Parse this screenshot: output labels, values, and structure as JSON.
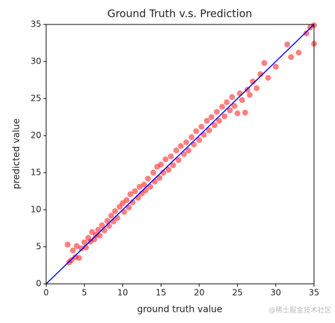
{
  "chart_data": {
    "type": "scatter",
    "title": "Ground Truth v.s. Prediction",
    "x_label": "ground truth value",
    "y_label": "predicted value",
    "x": [
      2.8,
      3.0,
      3.3,
      3.5,
      3.8,
      4.0,
      4.3,
      4.6,
      5.0,
      5.2,
      5.5,
      5.8,
      6.0,
      6.3,
      6.5,
      6.8,
      7.0,
      7.3,
      7.6,
      8.0,
      8.2,
      8.5,
      8.8,
      9.0,
      9.3,
      9.6,
      10.0,
      10.2,
      10.5,
      10.8,
      11.0,
      11.3,
      11.6,
      12.0,
      12.2,
      12.5,
      12.8,
      13.0,
      13.3,
      13.6,
      14.0,
      14.2,
      14.5,
      14.8,
      15.0,
      15.3,
      15.6,
      16.0,
      16.3,
      16.6,
      17.0,
      17.3,
      17.6,
      18.0,
      18.3,
      18.6,
      19.0,
      19.3,
      19.6,
      20.0,
      20.3,
      20.6,
      21.0,
      21.3,
      21.6,
      22.0,
      22.3,
      22.6,
      23.0,
      23.3,
      23.6,
      24.0,
      24.3,
      24.6,
      25.0,
      25.3,
      25.6,
      26.0,
      26.3,
      26.6,
      27.0,
      27.5,
      28.0,
      28.5,
      29.0,
      30.0,
      31.5,
      32.0,
      33.0,
      34.0,
      34.5,
      35.0,
      35.0
    ],
    "values": [
      5.3,
      2.9,
      3.2,
      4.5,
      3.6,
      5.1,
      3.5,
      4.8,
      5.6,
      4.9,
      6.2,
      5.7,
      7.0,
      6.0,
      6.6,
      7.3,
      6.5,
      7.9,
      7.2,
      8.5,
      7.8,
      9.2,
      8.4,
      9.8,
      8.9,
      10.4,
      10.9,
      9.7,
      11.3,
      10.3,
      12.1,
      11.0,
      12.5,
      11.6,
      13.1,
      12.2,
      13.4,
      12.6,
      14.2,
      13.1,
      15.0,
      13.8,
      15.8,
      14.3,
      16.1,
      15.0,
      16.8,
      15.4,
      17.2,
      16.0,
      18.0,
      16.7,
      18.6,
      17.5,
      19.1,
      18.0,
      19.8,
      18.8,
      20.6,
      19.4,
      21.2,
      20.1,
      22.0,
      20.7,
      22.5,
      21.4,
      23.2,
      22.0,
      23.9,
      22.6,
      24.5,
      23.4,
      25.2,
      24.0,
      23.0,
      25.7,
      24.8,
      23.1,
      26.2,
      25.5,
      27.3,
      26.4,
      28.3,
      29.8,
      27.8,
      29.3,
      32.3,
      30.6,
      31.2,
      33.8,
      34.6,
      32.4,
      34.9
    ],
    "color": "red",
    "reference_line": {
      "x": [
        0,
        35
      ],
      "values": [
        0,
        35
      ],
      "color": "blue"
    },
    "xlim": [
      0,
      35
    ],
    "ylim": [
      0,
      35
    ],
    "xticks": [
      0,
      5,
      10,
      15,
      20,
      25,
      30,
      35
    ],
    "yticks": [
      0,
      5,
      10,
      15,
      20,
      25,
      30,
      35
    ]
  },
  "watermark": "@稀土掘金技术社区"
}
